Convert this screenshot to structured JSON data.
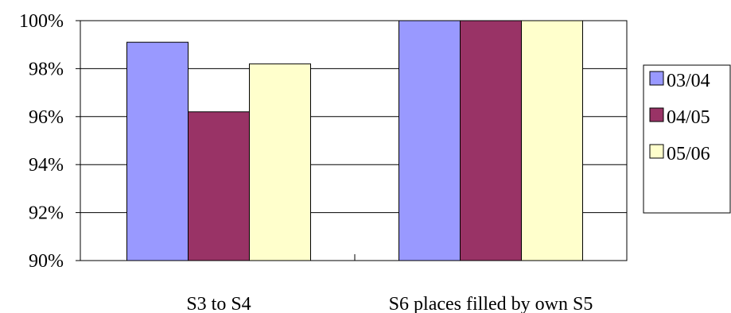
{
  "chart_data": {
    "type": "bar",
    "title": "",
    "xlabel": "",
    "ylabel": "",
    "categories": [
      "S3 to S4",
      "S6 places filled by own S5"
    ],
    "series": [
      {
        "name": "03/04",
        "values": [
          99.1,
          100
        ],
        "color": "#9999FF"
      },
      {
        "name": "04/05",
        "values": [
          96.2,
          100
        ],
        "color": "#993366"
      },
      {
        "name": "05/06",
        "values": [
          98.2,
          100
        ],
        "color": "#FFFFCC"
      }
    ],
    "ylim": [
      90,
      100
    ],
    "yticks": [
      "90%",
      "92%",
      "94%",
      "96%",
      "98%",
      "100%"
    ],
    "ytick_values": [
      90,
      92,
      94,
      96,
      98,
      100
    ],
    "grid": true,
    "legend_position": "right"
  }
}
